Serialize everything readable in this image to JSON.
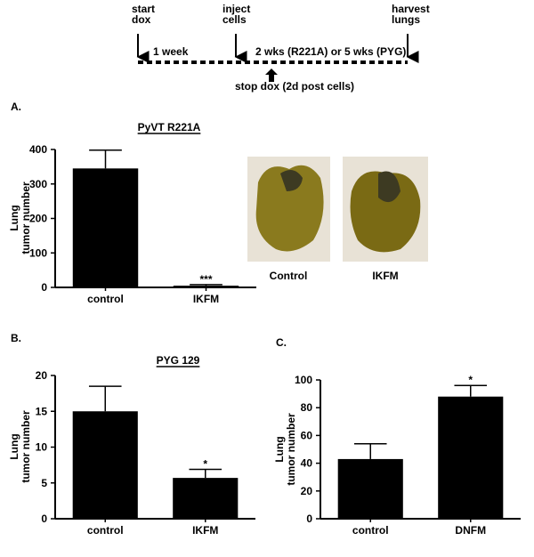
{
  "timeline": {
    "start": [
      "start",
      "dox"
    ],
    "inject": [
      "inject",
      "cells"
    ],
    "harvest": [
      "harvest",
      "lungs"
    ],
    "week": "1 week",
    "duration": "2 wks (R221A) or 5 wks (PYG)",
    "stop": "stop dox (2d post cells)"
  },
  "panels": [
    "A.",
    "B.",
    "C."
  ],
  "photos": [
    "Control",
    "IKFM"
  ],
  "chart_data": [
    {
      "type": "bar",
      "title": "PyVT R221A",
      "ylabel": [
        "Lung",
        "tumor number"
      ],
      "categories": [
        "control",
        "IKFM"
      ],
      "values": [
        345,
        5
      ],
      "errors": [
        53,
        3
      ],
      "significance": [
        null,
        "***"
      ],
      "color": "#000000",
      "ylim": [
        0,
        400
      ],
      "yticks": [
        0,
        100,
        200,
        300,
        400
      ]
    },
    {
      "type": "bar",
      "title": "PYG 129",
      "ylabel": [
        "Lung",
        "tumor number"
      ],
      "categories": [
        "control",
        "IKFM"
      ],
      "values": [
        15,
        5.7
      ],
      "errors": [
        3.5,
        1.2
      ],
      "significance": [
        null,
        "*"
      ],
      "color": "#000000",
      "ylim": [
        0,
        20
      ],
      "yticks": [
        0,
        5,
        10,
        15,
        20
      ]
    },
    {
      "type": "bar",
      "ylabel": [
        "Lung",
        "tumor number"
      ],
      "categories": [
        "control",
        "DNFM"
      ],
      "values": [
        43,
        88
      ],
      "errors": [
        11,
        8
      ],
      "significance": [
        null,
        "*"
      ],
      "color": "#000000",
      "ylim": [
        0,
        100
      ],
      "yticks": [
        0,
        20,
        40,
        60,
        80,
        100
      ]
    }
  ]
}
